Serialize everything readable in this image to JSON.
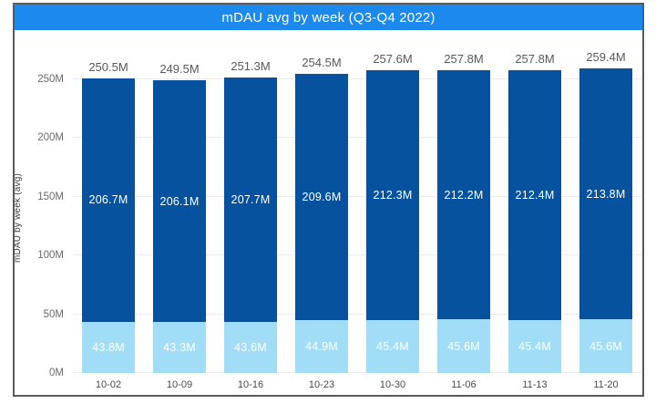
{
  "header": {
    "title": "mDAU avg by week (Q3-Q4 2022)"
  },
  "colors": {
    "header_bg": "#1b89ee",
    "header_text": "#ffffff",
    "bar_dark": "#07529f",
    "bar_light": "#a2ddf8",
    "total_label": "#595959",
    "segment_label": "#ffffff",
    "axis_label": "#6b6b6b",
    "gridline": "#ebebeb",
    "frame_border": "#5a5a5a"
  },
  "chart_data": {
    "type": "bar",
    "stacked": true,
    "title": "mDAU avg by week (Q3-Q4 2022)",
    "ylabel": "mDAU by week (avg)",
    "xlabel": "",
    "categories": [
      "10-02",
      "10-09",
      "10-16",
      "10-23",
      "10-30",
      "11-06",
      "11-13",
      "11-20"
    ],
    "series": [
      {
        "name": "light-blue-bottom-segment",
        "values": [
          43.8,
          43.3,
          43.6,
          44.9,
          45.4,
          45.6,
          45.4,
          45.6
        ],
        "labels": [
          "43.8M",
          "43.3M",
          "43.6M",
          "44.9M",
          "45.4M",
          "45.6M",
          "45.4M",
          "45.6M"
        ]
      },
      {
        "name": "dark-blue-top-segment",
        "values": [
          206.7,
          206.1,
          207.7,
          209.6,
          212.3,
          212.2,
          212.4,
          213.8
        ],
        "labels": [
          "206.7M",
          "206.1M",
          "207.7M",
          "209.6M",
          "212.3M",
          "212.2M",
          "212.4M",
          "213.8M"
        ]
      }
    ],
    "totals": [
      "250.5M",
      "249.5M",
      "251.3M",
      "254.5M",
      "257.6M",
      "257.8M",
      "257.8M",
      "259.4M"
    ],
    "yticks": [
      {
        "value": 0,
        "label": "0M"
      },
      {
        "value": 50,
        "label": "50M"
      },
      {
        "value": 100,
        "label": "100M"
      },
      {
        "value": 150,
        "label": "150M"
      },
      {
        "value": 200,
        "label": "200M"
      },
      {
        "value": 250,
        "label": "250M"
      }
    ],
    "ylim": [
      0,
      283
    ],
    "grid": true,
    "legend": "none"
  }
}
